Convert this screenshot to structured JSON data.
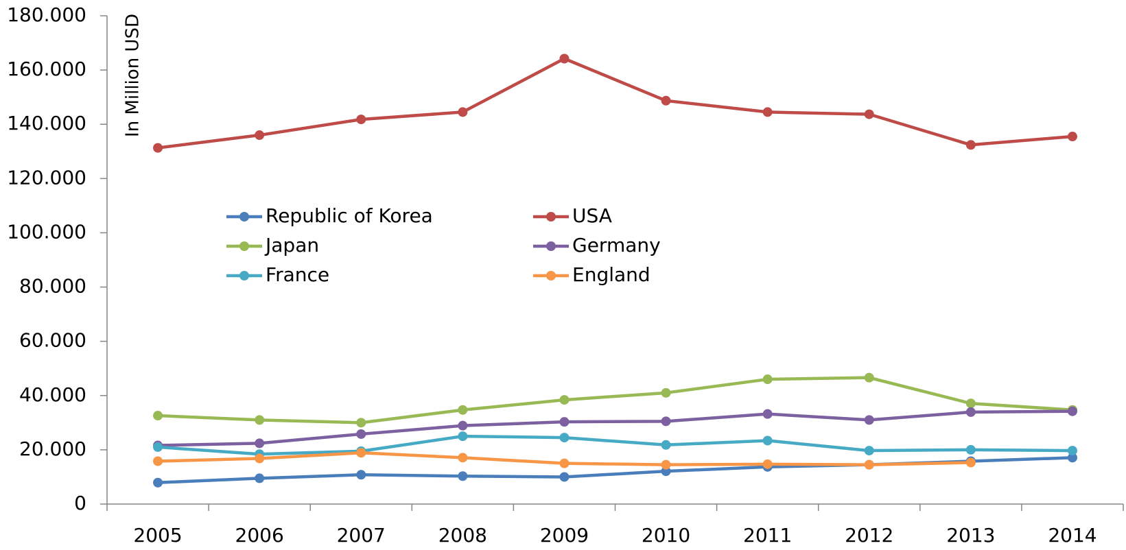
{
  "chart_data": {
    "type": "line",
    "y_label": "In Million USD",
    "categories": [
      "2005",
      "2006",
      "2007",
      "2008",
      "2009",
      "2010",
      "2011",
      "2012",
      "2013",
      "2014"
    ],
    "ylim": [
      0,
      180000
    ],
    "yticks": [
      0,
      {
        "value": 20000,
        "label": "20.000"
      },
      {
        "value": 40000,
        "label": "40.000"
      },
      {
        "value": 60000,
        "label": "60.000"
      },
      {
        "value": 80000,
        "label": "80.000"
      },
      {
        "value": 100000,
        "label": "100.000"
      },
      {
        "value": 120000,
        "label": "120.000"
      },
      {
        "value": 140000,
        "label": "140.000"
      },
      {
        "value": 160000,
        "label": "160.000"
      },
      {
        "value": 180000,
        "label": "180.000"
      }
    ],
    "grid": false,
    "series": [
      {
        "name": "Republic of Korea",
        "color": "#4a7ebb",
        "values": [
          7900,
          9500,
          10800,
          10300,
          10000,
          12100,
          13700,
          14500,
          15800,
          17100
        ]
      },
      {
        "name": "USA",
        "color": "#be4b48",
        "values": [
          131300,
          136000,
          141800,
          144500,
          164200,
          148700,
          144500,
          143700,
          132400,
          135500
        ]
      },
      {
        "name": "Japan",
        "color": "#98b954",
        "values": [
          32600,
          31000,
          30000,
          34700,
          38400,
          41000,
          46000,
          46600,
          37100,
          34700
        ]
      },
      {
        "name": "Germany",
        "color": "#7d60a0",
        "values": [
          21600,
          22400,
          25800,
          28900,
          30300,
          30500,
          33200,
          31000,
          33900,
          34200
        ]
      },
      {
        "name": "France",
        "color": "#46aac5",
        "values": [
          21000,
          18400,
          19500,
          25000,
          24500,
          21800,
          23400,
          19700,
          20000,
          19700
        ]
      },
      {
        "name": "England",
        "color": "#f79646",
        "values": [
          15800,
          16800,
          18900,
          17100,
          15000,
          14500,
          14700,
          14500,
          15300,
          null
        ]
      }
    ]
  }
}
